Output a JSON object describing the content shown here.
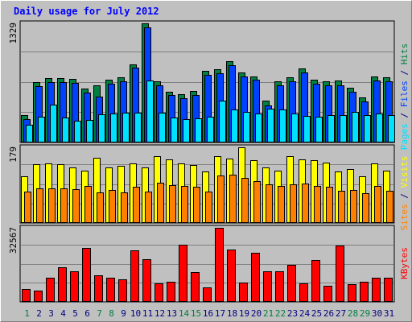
{
  "chart_data": {
    "type": "bar",
    "title": "Daily usage for July 2012",
    "colors": {
      "hits": "#008040",
      "files": "#0040ff",
      "pages": "#00e0ff",
      "visits": "#ffff00",
      "sites": "#ff8000",
      "kbytes": "#ff0000",
      "background": "#c0c0c0",
      "weekend_day": "#008040",
      "weekday_day": "#000080"
    },
    "x": [
      1,
      2,
      3,
      4,
      5,
      6,
      7,
      8,
      9,
      10,
      11,
      12,
      13,
      14,
      15,
      16,
      17,
      18,
      19,
      20,
      21,
      22,
      23,
      24,
      25,
      26,
      27,
      28,
      29,
      30,
      31
    ],
    "x_labels": [
      "1",
      "2",
      "3",
      "4",
      "5",
      "6",
      "7",
      "8",
      "9",
      "10",
      "11",
      "12",
      "13",
      "14",
      "15",
      "16",
      "17",
      "18",
      "19",
      "20",
      "21",
      "22",
      "23",
      "24",
      "25",
      "26",
      "27",
      "28",
      "29",
      "30",
      "31"
    ],
    "weekend_days": [
      1,
      7,
      8,
      14,
      15,
      21,
      22,
      28,
      29
    ],
    "grid": true,
    "panels": [
      {
        "name": "hits-files-pages",
        "max_label": "1329",
        "ymax": 1329,
        "right_labels": [
          {
            "text": "Pages",
            "color": "#00e0ff"
          },
          {
            "text": " / ",
            "color": "#000080"
          },
          {
            "text": "Files",
            "color": "#0040ff"
          },
          {
            "text": " / ",
            "color": "#000080"
          },
          {
            "text": "Hits",
            "color": "#008040"
          }
        ],
        "series": [
          {
            "key": "hits",
            "values": [
              302,
              673,
              714,
              714,
              706,
              600,
              634,
              698,
              731,
              873,
              1329,
              681,
              569,
              540,
              573,
              802,
              817,
              903,
              778,
              735,
              470,
              681,
              726,
              823,
              696,
              680,
              689,
              609,
              501,
              733,
              728
            ]
          },
          {
            "key": "files",
            "values": [
              256,
              627,
              674,
              676,
              663,
              556,
              513,
              655,
              682,
              833,
              1286,
              634,
              527,
              491,
              530,
              756,
              774,
              863,
              735,
              700,
              410,
              638,
              680,
              780,
              653,
              637,
              638,
              568,
              459,
              693,
              679
            ]
          },
          {
            "key": "pages",
            "values": [
              194,
              288,
              420,
              280,
              239,
              255,
              312,
              322,
              336,
              335,
              695,
              331,
              274,
              261,
              268,
              291,
              469,
              365,
              339,
              321,
              379,
              369,
              322,
              294,
              288,
              303,
              303,
              337,
              306,
              324,
              305
            ]
          }
        ]
      },
      {
        "name": "visits-sites",
        "max_label": "179",
        "ymax": 179,
        "right_labels": [
          {
            "text": "Sites",
            "color": "#ff8000"
          },
          {
            "text": " / ",
            "color": "#000080"
          },
          {
            "text": "Visits",
            "color": "#ffff00"
          }
        ],
        "series": [
          {
            "key": "visits",
            "values": [
              110,
              139,
              141,
              139,
              131,
              124,
              154,
              131,
              136,
              141,
              131,
              158,
              150,
              141,
              138,
              121,
              158,
              153,
              179,
              148,
              131,
              124,
              159,
              151,
              149,
              142,
              121,
              128,
              111,
              141,
              123
            ]
          },
          {
            "key": "sites",
            "values": [
              74,
              82,
              82,
              82,
              80,
              87,
              73,
              78,
              73,
              86,
              74,
              96,
              90,
              87,
              86,
              75,
              112,
              115,
              106,
              99,
              91,
              87,
              91,
              93,
              87,
              85,
              77,
              78,
              70,
              87,
              77
            ]
          }
        ]
      },
      {
        "name": "kbytes",
        "max_label": "32567",
        "ymax": 32567,
        "right_labels": [
          {
            "text": "KBytes",
            "color": "#ff0000"
          }
        ],
        "series": [
          {
            "key": "kbytes",
            "values": [
              5700,
              4800,
              10500,
              15200,
              13300,
              23700,
              11800,
              10600,
              9900,
              22800,
              18600,
              8100,
              9000,
              25300,
              13200,
              6400,
              32567,
              23000,
              8600,
              21700,
              13300,
              13300,
              16300,
              8300,
              18400,
              7200,
              24900,
              7700,
              8800,
              10500,
              10500
            ]
          }
        ]
      }
    ]
  }
}
